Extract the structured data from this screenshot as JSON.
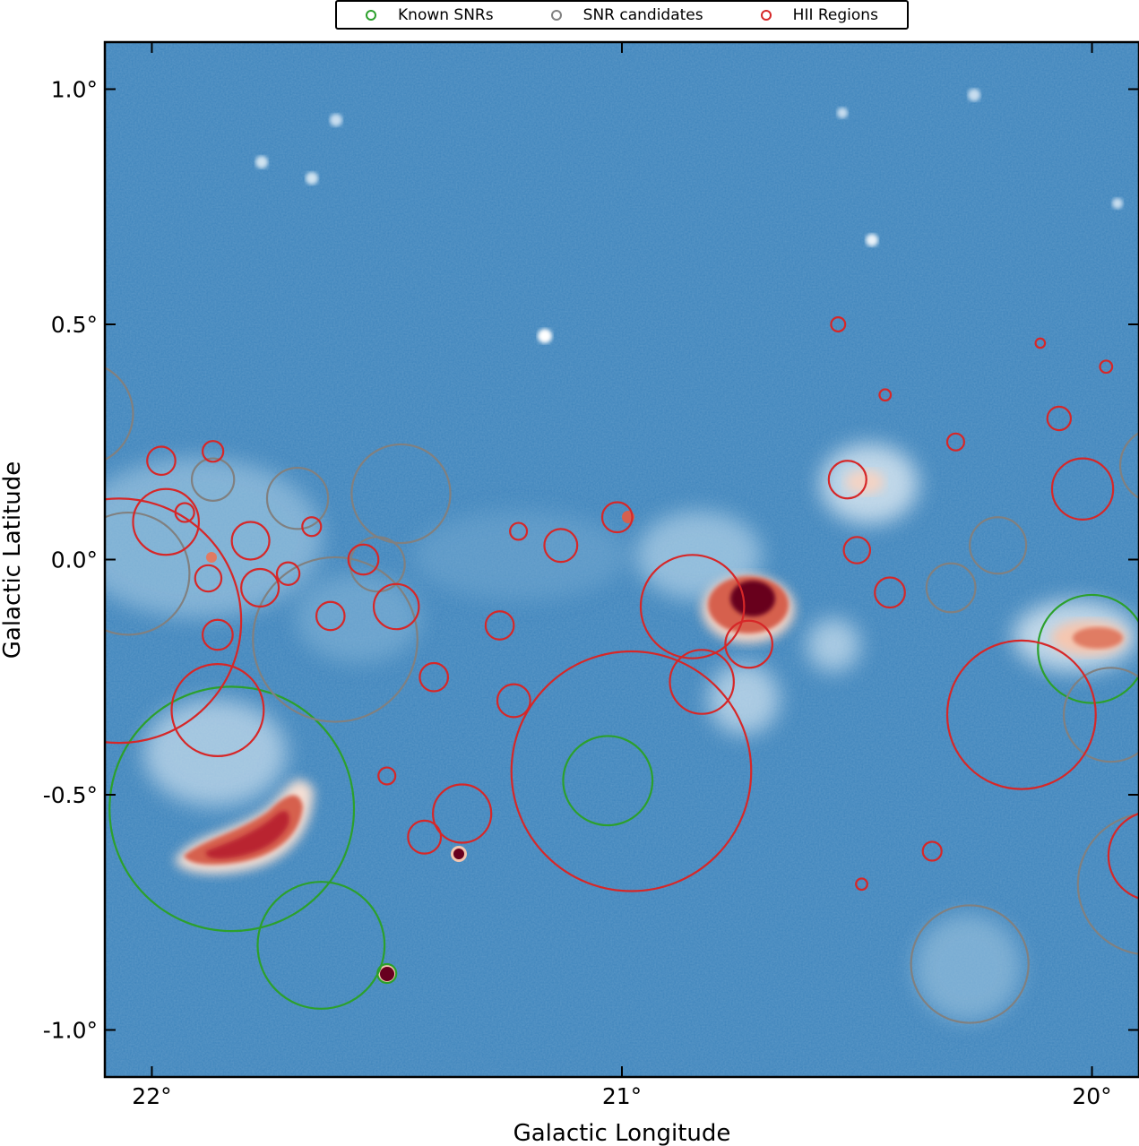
{
  "legend": {
    "entries": [
      {
        "label": "Known SNRs",
        "color": "#2ca02c"
      },
      {
        "label": "SNR candidates",
        "color": "#808080"
      },
      {
        "label": "HII Regions",
        "color": "#d62728"
      }
    ]
  },
  "chart_data": {
    "type": "scatter",
    "title": "",
    "xlabel": "Galactic Longitude",
    "ylabel": "Galactic Latitude",
    "xlim": [
      22.1,
      19.9
    ],
    "ylim": [
      -1.1,
      1.1
    ],
    "x_inverted": true,
    "xticks": [
      {
        "v": 22,
        "label": "22°"
      },
      {
        "v": 21,
        "label": "21°"
      },
      {
        "v": 20,
        "label": "20°"
      }
    ],
    "yticks": [
      {
        "v": 1.0,
        "label": "1.0°"
      },
      {
        "v": 0.5,
        "label": "0.5°"
      },
      {
        "v": 0.0,
        "label": "0.0°"
      },
      {
        "v": -0.5,
        "label": "-0.5°"
      },
      {
        "v": -1.0,
        "label": "-1.0°"
      }
    ],
    "colormap": "RdBu_r",
    "background_image": "radio continuum intensity map",
    "series": [
      {
        "name": "Known SNRs",
        "color": "#2ca02c",
        "circles": [
          {
            "l": 21.83,
            "b": -0.53,
            "r": 0.26
          },
          {
            "l": 21.64,
            "b": -0.82,
            "r": 0.135
          },
          {
            "l": 21.5,
            "b": -0.88,
            "r": 0.02
          },
          {
            "l": 21.03,
            "b": -0.47,
            "r": 0.095
          },
          {
            "l": 20.0,
            "b": -0.19,
            "r": 0.115
          }
        ]
      },
      {
        "name": "SNR candidates",
        "color": "#808080",
        "circles": [
          {
            "l": 22.15,
            "b": 0.31,
            "r": 0.11
          },
          {
            "l": 22.05,
            "b": -0.03,
            "r": 0.13
          },
          {
            "l": 21.87,
            "b": 0.17,
            "r": 0.045
          },
          {
            "l": 21.69,
            "b": 0.13,
            "r": 0.065
          },
          {
            "l": 21.47,
            "b": 0.14,
            "r": 0.105
          },
          {
            "l": 21.52,
            "b": -0.01,
            "r": 0.058
          },
          {
            "l": 21.61,
            "b": -0.17,
            "r": 0.175
          },
          {
            "l": 20.3,
            "b": -0.06,
            "r": 0.052
          },
          {
            "l": 20.2,
            "b": 0.03,
            "r": 0.06
          },
          {
            "l": 19.96,
            "b": -0.33,
            "r": 0.1
          },
          {
            "l": 20.26,
            "b": -0.86,
            "r": 0.125
          },
          {
            "l": 19.88,
            "b": -0.69,
            "r": 0.15
          },
          {
            "l": 19.86,
            "b": 0.2,
            "r": 0.08
          }
        ]
      },
      {
        "name": "HII Regions",
        "color": "#d62728",
        "circles": [
          {
            "l": 22.07,
            "b": -0.13,
            "r": 0.26
          },
          {
            "l": 21.86,
            "b": -0.32,
            "r": 0.098
          },
          {
            "l": 21.97,
            "b": 0.08,
            "r": 0.07
          },
          {
            "l": 21.79,
            "b": 0.04,
            "r": 0.04
          },
          {
            "l": 21.77,
            "b": -0.06,
            "r": 0.04
          },
          {
            "l": 21.87,
            "b": 0.23,
            "r": 0.022
          },
          {
            "l": 21.98,
            "b": 0.21,
            "r": 0.03
          },
          {
            "l": 21.93,
            "b": 0.1,
            "r": 0.02
          },
          {
            "l": 21.71,
            "b": -0.03,
            "r": 0.024
          },
          {
            "l": 21.62,
            "b": -0.12,
            "r": 0.03
          },
          {
            "l": 21.55,
            "b": 0.0,
            "r": 0.032
          },
          {
            "l": 21.48,
            "b": -0.1,
            "r": 0.048
          },
          {
            "l": 21.86,
            "b": -0.16,
            "r": 0.032
          },
          {
            "l": 21.88,
            "b": -0.04,
            "r": 0.028
          },
          {
            "l": 21.66,
            "b": 0.07,
            "r": 0.02
          },
          {
            "l": 21.4,
            "b": -0.25,
            "r": 0.03
          },
          {
            "l": 21.26,
            "b": -0.14,
            "r": 0.03
          },
          {
            "l": 21.22,
            "b": 0.06,
            "r": 0.018
          },
          {
            "l": 21.13,
            "b": 0.03,
            "r": 0.035
          },
          {
            "l": 21.01,
            "b": 0.09,
            "r": 0.032
          },
          {
            "l": 20.85,
            "b": -0.1,
            "r": 0.11
          },
          {
            "l": 20.83,
            "b": -0.26,
            "r": 0.068
          },
          {
            "l": 20.73,
            "b": -0.18,
            "r": 0.05
          },
          {
            "l": 20.98,
            "b": -0.45,
            "r": 0.255
          },
          {
            "l": 21.23,
            "b": -0.3,
            "r": 0.035
          },
          {
            "l": 21.34,
            "b": -0.54,
            "r": 0.062
          },
          {
            "l": 21.42,
            "b": -0.59,
            "r": 0.035
          },
          {
            "l": 21.5,
            "b": -0.46,
            "r": 0.018
          },
          {
            "l": 20.52,
            "b": 0.17,
            "r": 0.04
          },
          {
            "l": 20.5,
            "b": 0.02,
            "r": 0.028
          },
          {
            "l": 20.43,
            "b": -0.07,
            "r": 0.032
          },
          {
            "l": 20.44,
            "b": 0.35,
            "r": 0.012
          },
          {
            "l": 20.54,
            "b": 0.5,
            "r": 0.015
          },
          {
            "l": 20.29,
            "b": 0.25,
            "r": 0.018
          },
          {
            "l": 20.11,
            "b": 0.46,
            "r": 0.01
          },
          {
            "l": 20.07,
            "b": 0.3,
            "r": 0.025
          },
          {
            "l": 19.97,
            "b": 0.41,
            "r": 0.013
          },
          {
            "l": 20.02,
            "b": 0.15,
            "r": 0.065
          },
          {
            "l": 20.15,
            "b": -0.33,
            "r": 0.158
          },
          {
            "l": 20.34,
            "b": -0.62,
            "r": 0.02
          },
          {
            "l": 20.49,
            "b": -0.69,
            "r": 0.012
          },
          {
            "l": 19.87,
            "b": -0.63,
            "r": 0.095
          }
        ]
      }
    ],
    "bright_sources": [
      {
        "l": 21.82,
        "b": -0.58,
        "note": "bright extended"
      },
      {
        "l": 20.86,
        "b": -0.08,
        "note": "bright compact"
      },
      {
        "l": 21.35,
        "b": -0.63,
        "note": "point source"
      },
      {
        "l": 21.5,
        "b": -0.88,
        "note": "point source"
      },
      {
        "l": 20.0,
        "b": -0.17,
        "note": "bright"
      },
      {
        "l": 21.0,
        "b": 0.09,
        "note": "compact"
      }
    ]
  }
}
